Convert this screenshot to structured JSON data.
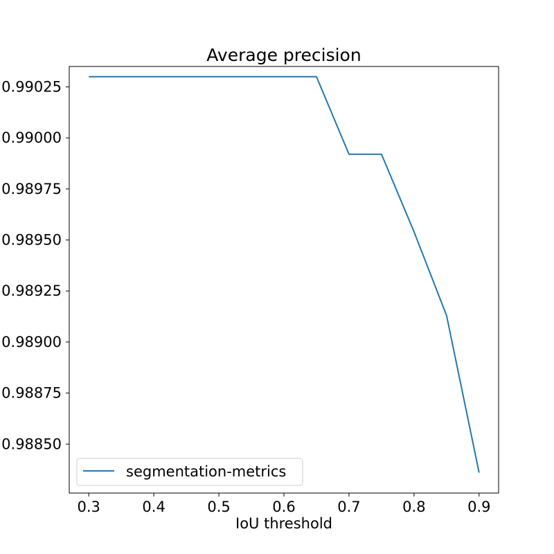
{
  "chart_data": {
    "type": "line",
    "title": "Average precision",
    "xlabel": "IoU threshold",
    "ylabel": "",
    "xlim": [
      0.27,
      0.93
    ],
    "ylim": [
      0.98826,
      0.99035
    ],
    "xticks": [
      0.3,
      0.4,
      0.5,
      0.6,
      0.7,
      0.8,
      0.9
    ],
    "xtick_labels": [
      "0.3",
      "0.4",
      "0.5",
      "0.6",
      "0.7",
      "0.8",
      "0.9"
    ],
    "yticks": [
      0.9885,
      0.98875,
      0.989,
      0.98925,
      0.9895,
      0.98975,
      0.99,
      0.99025
    ],
    "ytick_labels": [
      "0.98850",
      "0.98875",
      "0.98900",
      "0.98925",
      "0.98950",
      "0.98975",
      "0.99000",
      "0.99025"
    ],
    "grid": false,
    "legend_position": "lower-left",
    "series": [
      {
        "name": "segmentation-metrics",
        "color": "#1f77b4",
        "x": [
          0.3,
          0.35,
          0.4,
          0.45,
          0.5,
          0.55,
          0.6,
          0.65,
          0.7,
          0.75,
          0.8,
          0.85,
          0.9
        ],
        "y": [
          0.9903,
          0.9903,
          0.9903,
          0.9903,
          0.9903,
          0.9903,
          0.9903,
          0.9903,
          0.98992,
          0.98992,
          0.98954,
          0.98913,
          0.98836
        ]
      }
    ]
  }
}
